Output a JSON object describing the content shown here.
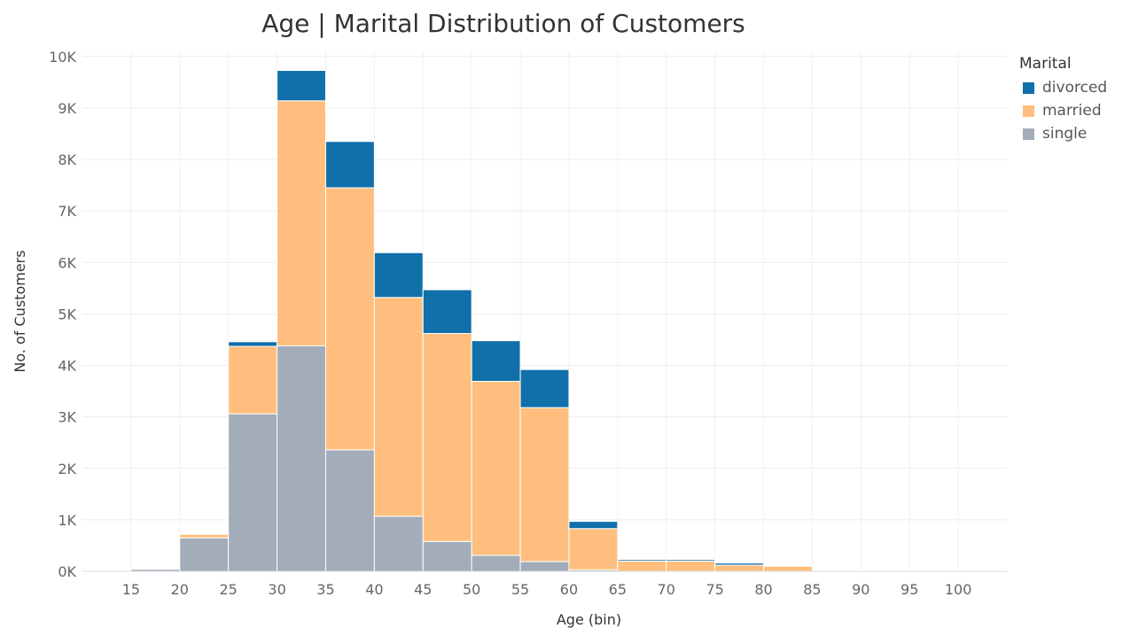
{
  "chart_data": {
    "type": "bar",
    "stacked": true,
    "title": "Age | Marital Distribution of Customers",
    "xlabel": "Age (bin)",
    "ylabel": "No. of Customers",
    "x_ticks": [
      "15",
      "20",
      "25",
      "30",
      "35",
      "40",
      "45",
      "50",
      "55",
      "60",
      "65",
      "70",
      "75",
      "80",
      "85",
      "90",
      "95",
      "100"
    ],
    "bins_start": [
      15,
      20,
      25,
      30,
      35,
      40,
      45,
      50,
      55,
      60,
      65,
      70,
      75,
      80,
      85
    ],
    "bin_width": 5,
    "y_ticks": [
      0,
      1000,
      2000,
      3000,
      4000,
      5000,
      6000,
      7000,
      8000,
      9000,
      10000
    ],
    "y_tick_labels": [
      "0K",
      "1K",
      "2K",
      "3K",
      "4K",
      "5K",
      "6K",
      "7K",
      "8K",
      "9K",
      "10K"
    ],
    "ylim": [
      0,
      10100
    ],
    "xlim": [
      10,
      105
    ],
    "grid": true,
    "legend_title": "Marital",
    "legend_position": "right",
    "series": [
      {
        "name": "single",
        "color": "#A3ACB9",
        "values": [
          40,
          650,
          3060,
          4380,
          2360,
          1070,
          580,
          310,
          190,
          30,
          0,
          0,
          0,
          0,
          10
        ]
      },
      {
        "name": "married",
        "color": "#FFBE7D",
        "values": [
          0,
          70,
          1310,
          4760,
          5090,
          4250,
          4040,
          3380,
          2990,
          800,
          200,
          200,
          120,
          100,
          10
        ]
      },
      {
        "name": "divorced",
        "color": "#1170AA",
        "values": [
          0,
          10,
          90,
          590,
          900,
          870,
          850,
          790,
          740,
          140,
          30,
          30,
          40,
          0,
          0
        ]
      }
    ],
    "legend_order": [
      "divorced",
      "married",
      "single"
    ]
  }
}
